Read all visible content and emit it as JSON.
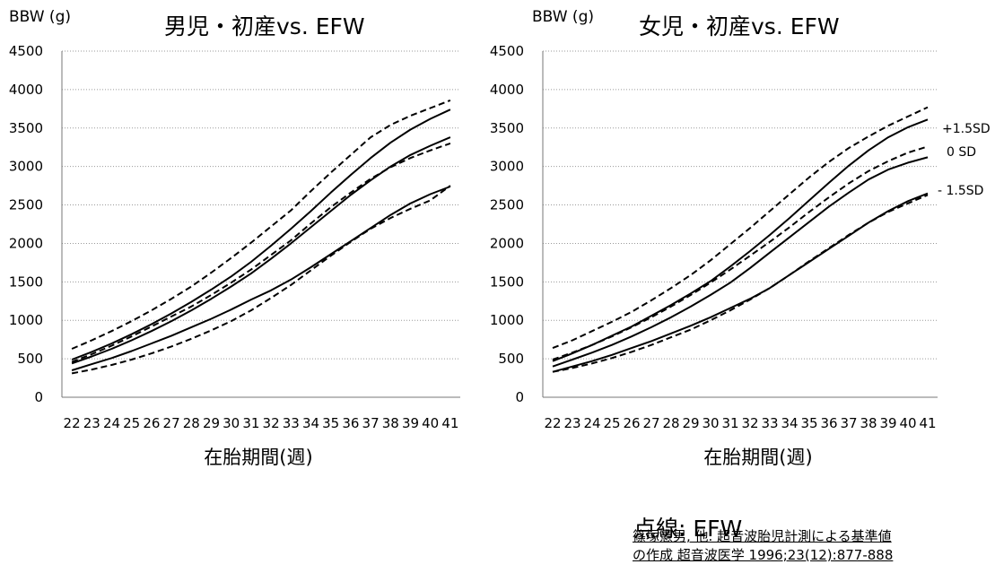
{
  "chart_data": [
    {
      "type": "line",
      "title": "男児・初産vs. EFW",
      "ylabel": "BBW (g)",
      "xlabel": "在胎期間(週)",
      "x": [
        22,
        23,
        24,
        25,
        26,
        27,
        28,
        29,
        30,
        31,
        32,
        33,
        34,
        35,
        36,
        37,
        38,
        39,
        40,
        41
      ],
      "ylim": [
        0,
        4500
      ],
      "yticks": [
        0,
        500,
        1000,
        1500,
        2000,
        2500,
        3000,
        3500,
        4000,
        4500
      ],
      "grid": true,
      "series": [
        {
          "style": "solid",
          "values": [
            490,
            590,
            700,
            820,
            950,
            1090,
            1240,
            1400,
            1570,
            1760,
            1970,
            2190,
            2420,
            2660,
            2890,
            3110,
            3310,
            3480,
            3620,
            3740
          ]
        },
        {
          "style": "solid",
          "values": [
            440,
            530,
            630,
            740,
            860,
            990,
            1130,
            1280,
            1440,
            1610,
            1800,
            2000,
            2210,
            2420,
            2630,
            2820,
            3000,
            3150,
            3270,
            3380
          ]
        },
        {
          "style": "solid",
          "values": [
            350,
            430,
            510,
            600,
            700,
            800,
            910,
            1020,
            1140,
            1270,
            1390,
            1530,
            1690,
            1860,
            2030,
            2200,
            2370,
            2520,
            2640,
            2740
          ]
        },
        {
          "style": "dashed",
          "values": [
            630,
            740,
            860,
            990,
            1130,
            1280,
            1440,
            1620,
            1810,
            2010,
            2220,
            2430,
            2680,
            2920,
            3150,
            3380,
            3540,
            3660,
            3760,
            3860
          ]
        },
        {
          "style": "dashed",
          "values": [
            460,
            560,
            670,
            790,
            920,
            1050,
            1180,
            1330,
            1490,
            1660,
            1850,
            2040,
            2260,
            2470,
            2660,
            2840,
            2990,
            3110,
            3210,
            3300
          ]
        },
        {
          "style": "dashed",
          "values": [
            310,
            360,
            420,
            490,
            570,
            660,
            760,
            870,
            990,
            1130,
            1290,
            1460,
            1650,
            1840,
            2020,
            2190,
            2330,
            2450,
            2560,
            2750
          ]
        }
      ]
    },
    {
      "type": "line",
      "title": "女児・初産vs. EFW",
      "ylabel": "BBW (g)",
      "xlabel": "在胎期間(週)",
      "x": [
        22,
        23,
        24,
        25,
        26,
        27,
        28,
        29,
        30,
        31,
        32,
        33,
        34,
        35,
        36,
        37,
        38,
        39,
        40,
        41
      ],
      "ylim": [
        0,
        4500
      ],
      "yticks": [
        0,
        500,
        1000,
        1500,
        2000,
        2500,
        3000,
        3500,
        4000,
        4500
      ],
      "grid": true,
      "annotations": [
        "+1.5SD",
        "0 SD",
        "- 1.5SD"
      ],
      "series": [
        {
          "style": "solid",
          "values": [
            470,
            570,
            680,
            800,
            920,
            1060,
            1200,
            1350,
            1510,
            1700,
            1900,
            2110,
            2330,
            2560,
            2790,
            3010,
            3210,
            3380,
            3510,
            3610
          ]
        },
        {
          "style": "solid",
          "values": [
            400,
            490,
            580,
            680,
            790,
            910,
            1040,
            1180,
            1330,
            1490,
            1680,
            1880,
            2080,
            2280,
            2480,
            2660,
            2830,
            2960,
            3050,
            3120
          ]
        },
        {
          "style": "solid",
          "values": [
            330,
            400,
            470,
            550,
            640,
            730,
            830,
            930,
            1040,
            1160,
            1280,
            1420,
            1590,
            1760,
            1930,
            2100,
            2270,
            2420,
            2550,
            2650
          ]
        },
        {
          "style": "dashed",
          "values": [
            640,
            740,
            860,
            980,
            1110,
            1260,
            1420,
            1590,
            1780,
            1990,
            2200,
            2420,
            2640,
            2860,
            3060,
            3240,
            3390,
            3530,
            3650,
            3770
          ]
        },
        {
          "style": "dashed",
          "values": [
            490,
            580,
            680,
            790,
            910,
            1040,
            1180,
            1330,
            1490,
            1660,
            1840,
            2020,
            2210,
            2410,
            2600,
            2780,
            2940,
            3070,
            3180,
            3260
          ]
        },
        {
          "style": "dashed",
          "values": [
            330,
            380,
            440,
            510,
            590,
            680,
            780,
            880,
            1000,
            1130,
            1270,
            1420,
            1590,
            1770,
            1940,
            2110,
            2270,
            2410,
            2520,
            2630
          ]
        }
      ]
    }
  ],
  "legend_note": "点線: EFW",
  "citation": {
    "line1": "篠塚憲男, 他. 超音波胎児計測による基準値",
    "line2": "の作成 超音波医学 1996;23(12):877-888"
  }
}
